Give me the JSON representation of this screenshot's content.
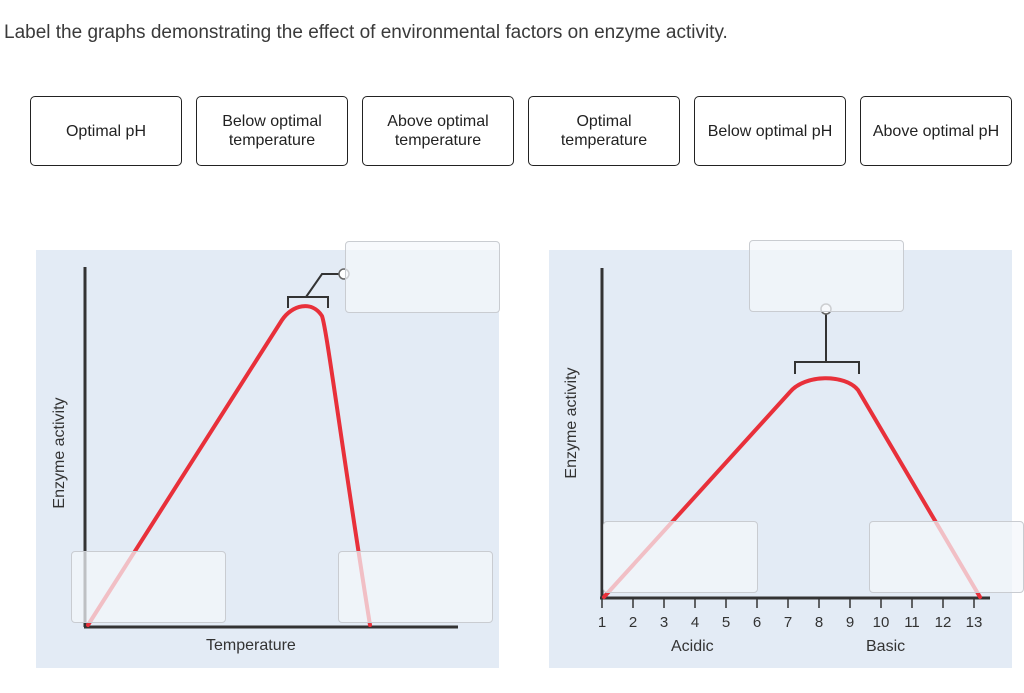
{
  "instruction": "Label the graphs demonstrating the effect of environmental factors on enzyme activity.",
  "label_bank": [
    {
      "label": "Optimal pH"
    },
    {
      "label": "Below optimal temperature"
    },
    {
      "label": "Above optimal temperature"
    },
    {
      "label": "Optimal temperature"
    },
    {
      "label": "Below optimal pH"
    },
    {
      "label": "Above optimal pH"
    }
  ],
  "temperature_graph": {
    "y_axis_label": "Enzyme activity",
    "x_axis_label": "Temperature"
  },
  "ph_graph": {
    "y_axis_label": "Enzyme activity",
    "x_ticks": [
      "1",
      "2",
      "3",
      "4",
      "5",
      "6",
      "7",
      "8",
      "9",
      "10",
      "11",
      "12",
      "13"
    ],
    "x_group_acidic": "Acidic",
    "x_group_basic": "Basic"
  },
  "colors": {
    "curve": "#e8303a",
    "panel": "#e3ebf5",
    "axis": "#333333"
  }
}
